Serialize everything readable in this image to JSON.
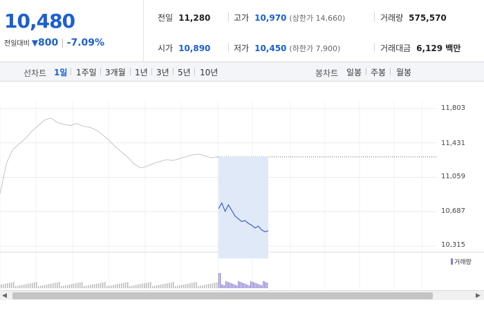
{
  "quote": {
    "price": "10,480",
    "change_label": "전일대비",
    "change_arrow": "▼",
    "change_amount": "800",
    "change_pct": "-7.09%",
    "stats": [
      {
        "key": "전일",
        "value": "11,280",
        "tone": "neutral",
        "sub": ""
      },
      {
        "key": "고가",
        "value": "10,970",
        "tone": "down",
        "sub": "(상한가 14,660)"
      },
      {
        "key": "거래량",
        "value": "575,570",
        "tone": "neutral",
        "sub": ""
      },
      {
        "key": "시가",
        "value": "10,890",
        "tone": "down",
        "sub": ""
      },
      {
        "key": "저가",
        "value": "10,450",
        "tone": "down",
        "sub": "(하한가 7,900)"
      },
      {
        "key": "거래대금",
        "value": "6,129 백만",
        "tone": "neutral",
        "sub": ""
      }
    ]
  },
  "toolbar": {
    "line_chart_label": "선차트",
    "candle_chart_label": "봉차트",
    "periods": [
      {
        "label": "1일",
        "active": true
      },
      {
        "label": "1주일",
        "active": false
      },
      {
        "label": "3개월",
        "active": false
      },
      {
        "label": "1년",
        "active": false
      },
      {
        "label": "3년",
        "active": false
      },
      {
        "label": "5년",
        "active": false
      },
      {
        "label": "10년",
        "active": false
      }
    ],
    "candles": [
      {
        "label": "일봉"
      },
      {
        "label": "주봉"
      },
      {
        "label": "월봉"
      }
    ]
  },
  "chart_data": {
    "type": "line",
    "y_ticks": [
      "11,803",
      "11,431",
      "11,059",
      "10,687",
      "10,315"
    ],
    "ylim": [
      10315,
      11803
    ],
    "previous_close": 11280,
    "volume_legend": "거래량",
    "grid": true,
    "series": [
      {
        "role": "previous-day-intraday",
        "color": "#c4c4c4",
        "values": [
          10880,
          11210,
          11360,
          11420,
          11480,
          11560,
          11620,
          11680,
          11700,
          11650,
          11630,
          11620,
          11640,
          11610,
          11600,
          11570,
          11520,
          11460,
          11390,
          11330,
          11270,
          11200,
          11160,
          11180,
          11210,
          11230,
          11250,
          11240,
          11260,
          11280,
          11300,
          11310,
          11290,
          11270,
          11280
        ]
      },
      {
        "role": "current-day-intraday",
        "color": "#3a5fc8",
        "fill": "#dfe9f8",
        "values": [
          10720,
          10780,
          10690,
          10760,
          10700,
          10640,
          10610,
          10580,
          10590,
          10560,
          10540,
          10510,
          10530,
          10490,
          10470,
          10480
        ]
      }
    ]
  }
}
